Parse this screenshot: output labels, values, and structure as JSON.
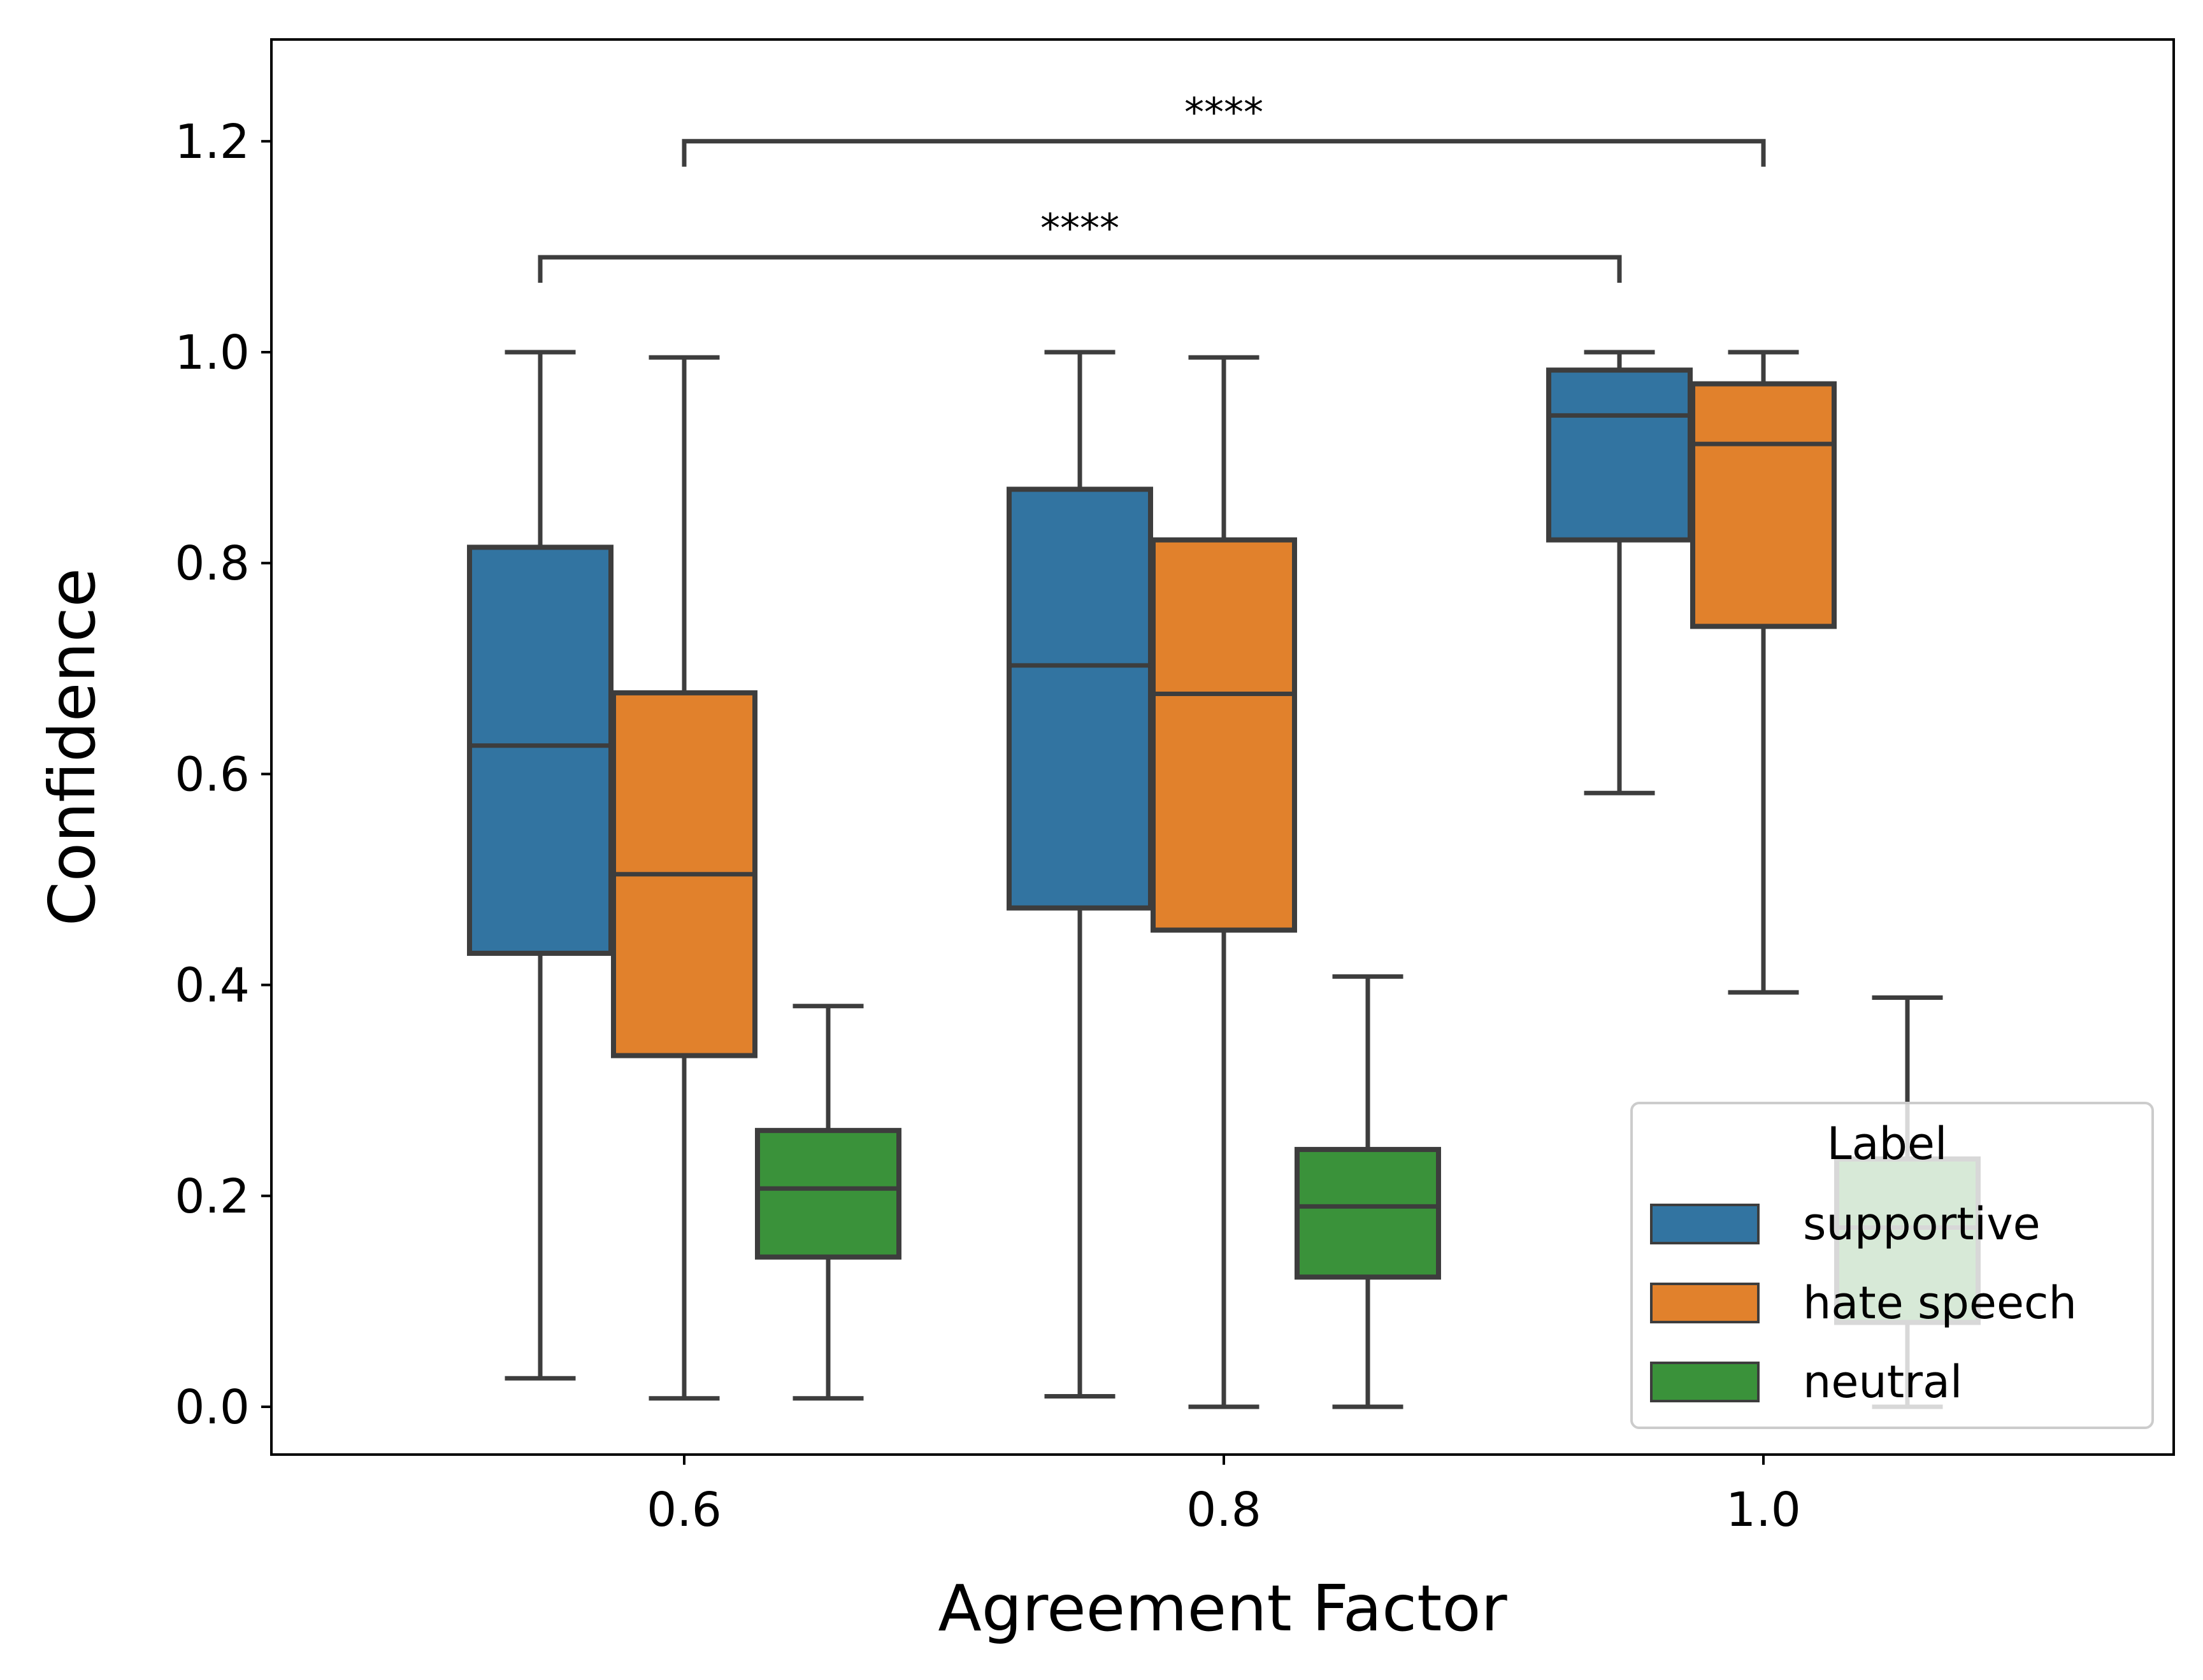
{
  "chart_data": {
    "type": "box",
    "xlabel": "Agreement Factor",
    "ylabel": "Confidence",
    "ylim": [
      -0.05,
      1.3
    ],
    "yticks": [
      "0.0",
      "0.2",
      "0.4",
      "0.6",
      "0.8",
      "1.0",
      "1.2"
    ],
    "categories": [
      "0.6",
      "0.8",
      "1.0"
    ],
    "legend": {
      "title": "Label",
      "position": "lower right"
    },
    "series": [
      {
        "name": "supportive",
        "color": "#3274a1",
        "boxes": [
          {
            "whisker_low": 0.027,
            "q1": 0.43,
            "median": 0.627,
            "q3": 0.815,
            "whisker_high": 1.0
          },
          {
            "whisker_low": 0.01,
            "q1": 0.473,
            "median": 0.703,
            "q3": 0.87,
            "whisker_high": 1.0
          },
          {
            "whisker_low": 0.582,
            "q1": 0.822,
            "median": 0.94,
            "q3": 0.983,
            "whisker_high": 1.0
          }
        ]
      },
      {
        "name": "hate speech",
        "color": "#e1812c",
        "boxes": [
          {
            "whisker_low": 0.008,
            "q1": 0.333,
            "median": 0.505,
            "q3": 0.677,
            "whisker_high": 0.995
          },
          {
            "whisker_low": 0.0,
            "q1": 0.452,
            "median": 0.676,
            "q3": 0.822,
            "whisker_high": 0.995
          },
          {
            "whisker_low": 0.393,
            "q1": 0.74,
            "median": 0.913,
            "q3": 0.97,
            "whisker_high": 1.0
          }
        ]
      },
      {
        "name": "neutral",
        "color": "#3a923a",
        "boxes": [
          {
            "whisker_low": 0.008,
            "q1": 0.142,
            "median": 0.207,
            "q3": 0.262,
            "whisker_high": 0.38
          },
          {
            "whisker_low": 0.0,
            "q1": 0.123,
            "median": 0.19,
            "q3": 0.244,
            "whisker_high": 0.408
          },
          {
            "whisker_low": 0.0,
            "q1": 0.08,
            "median": 0.17,
            "q3": 0.235,
            "whisker_high": 0.388
          }
        ]
      }
    ],
    "annotations": [
      {
        "text": "****",
        "from": {
          "category": "0.6",
          "series": "supportive"
        },
        "to": {
          "category": "1.0",
          "series": "supportive"
        },
        "y": 1.09
      },
      {
        "text": "****",
        "from": {
          "category": "0.6",
          "series": "hate speech"
        },
        "to": {
          "category": "1.0",
          "series": "hate speech"
        },
        "y": 1.2
      }
    ]
  }
}
